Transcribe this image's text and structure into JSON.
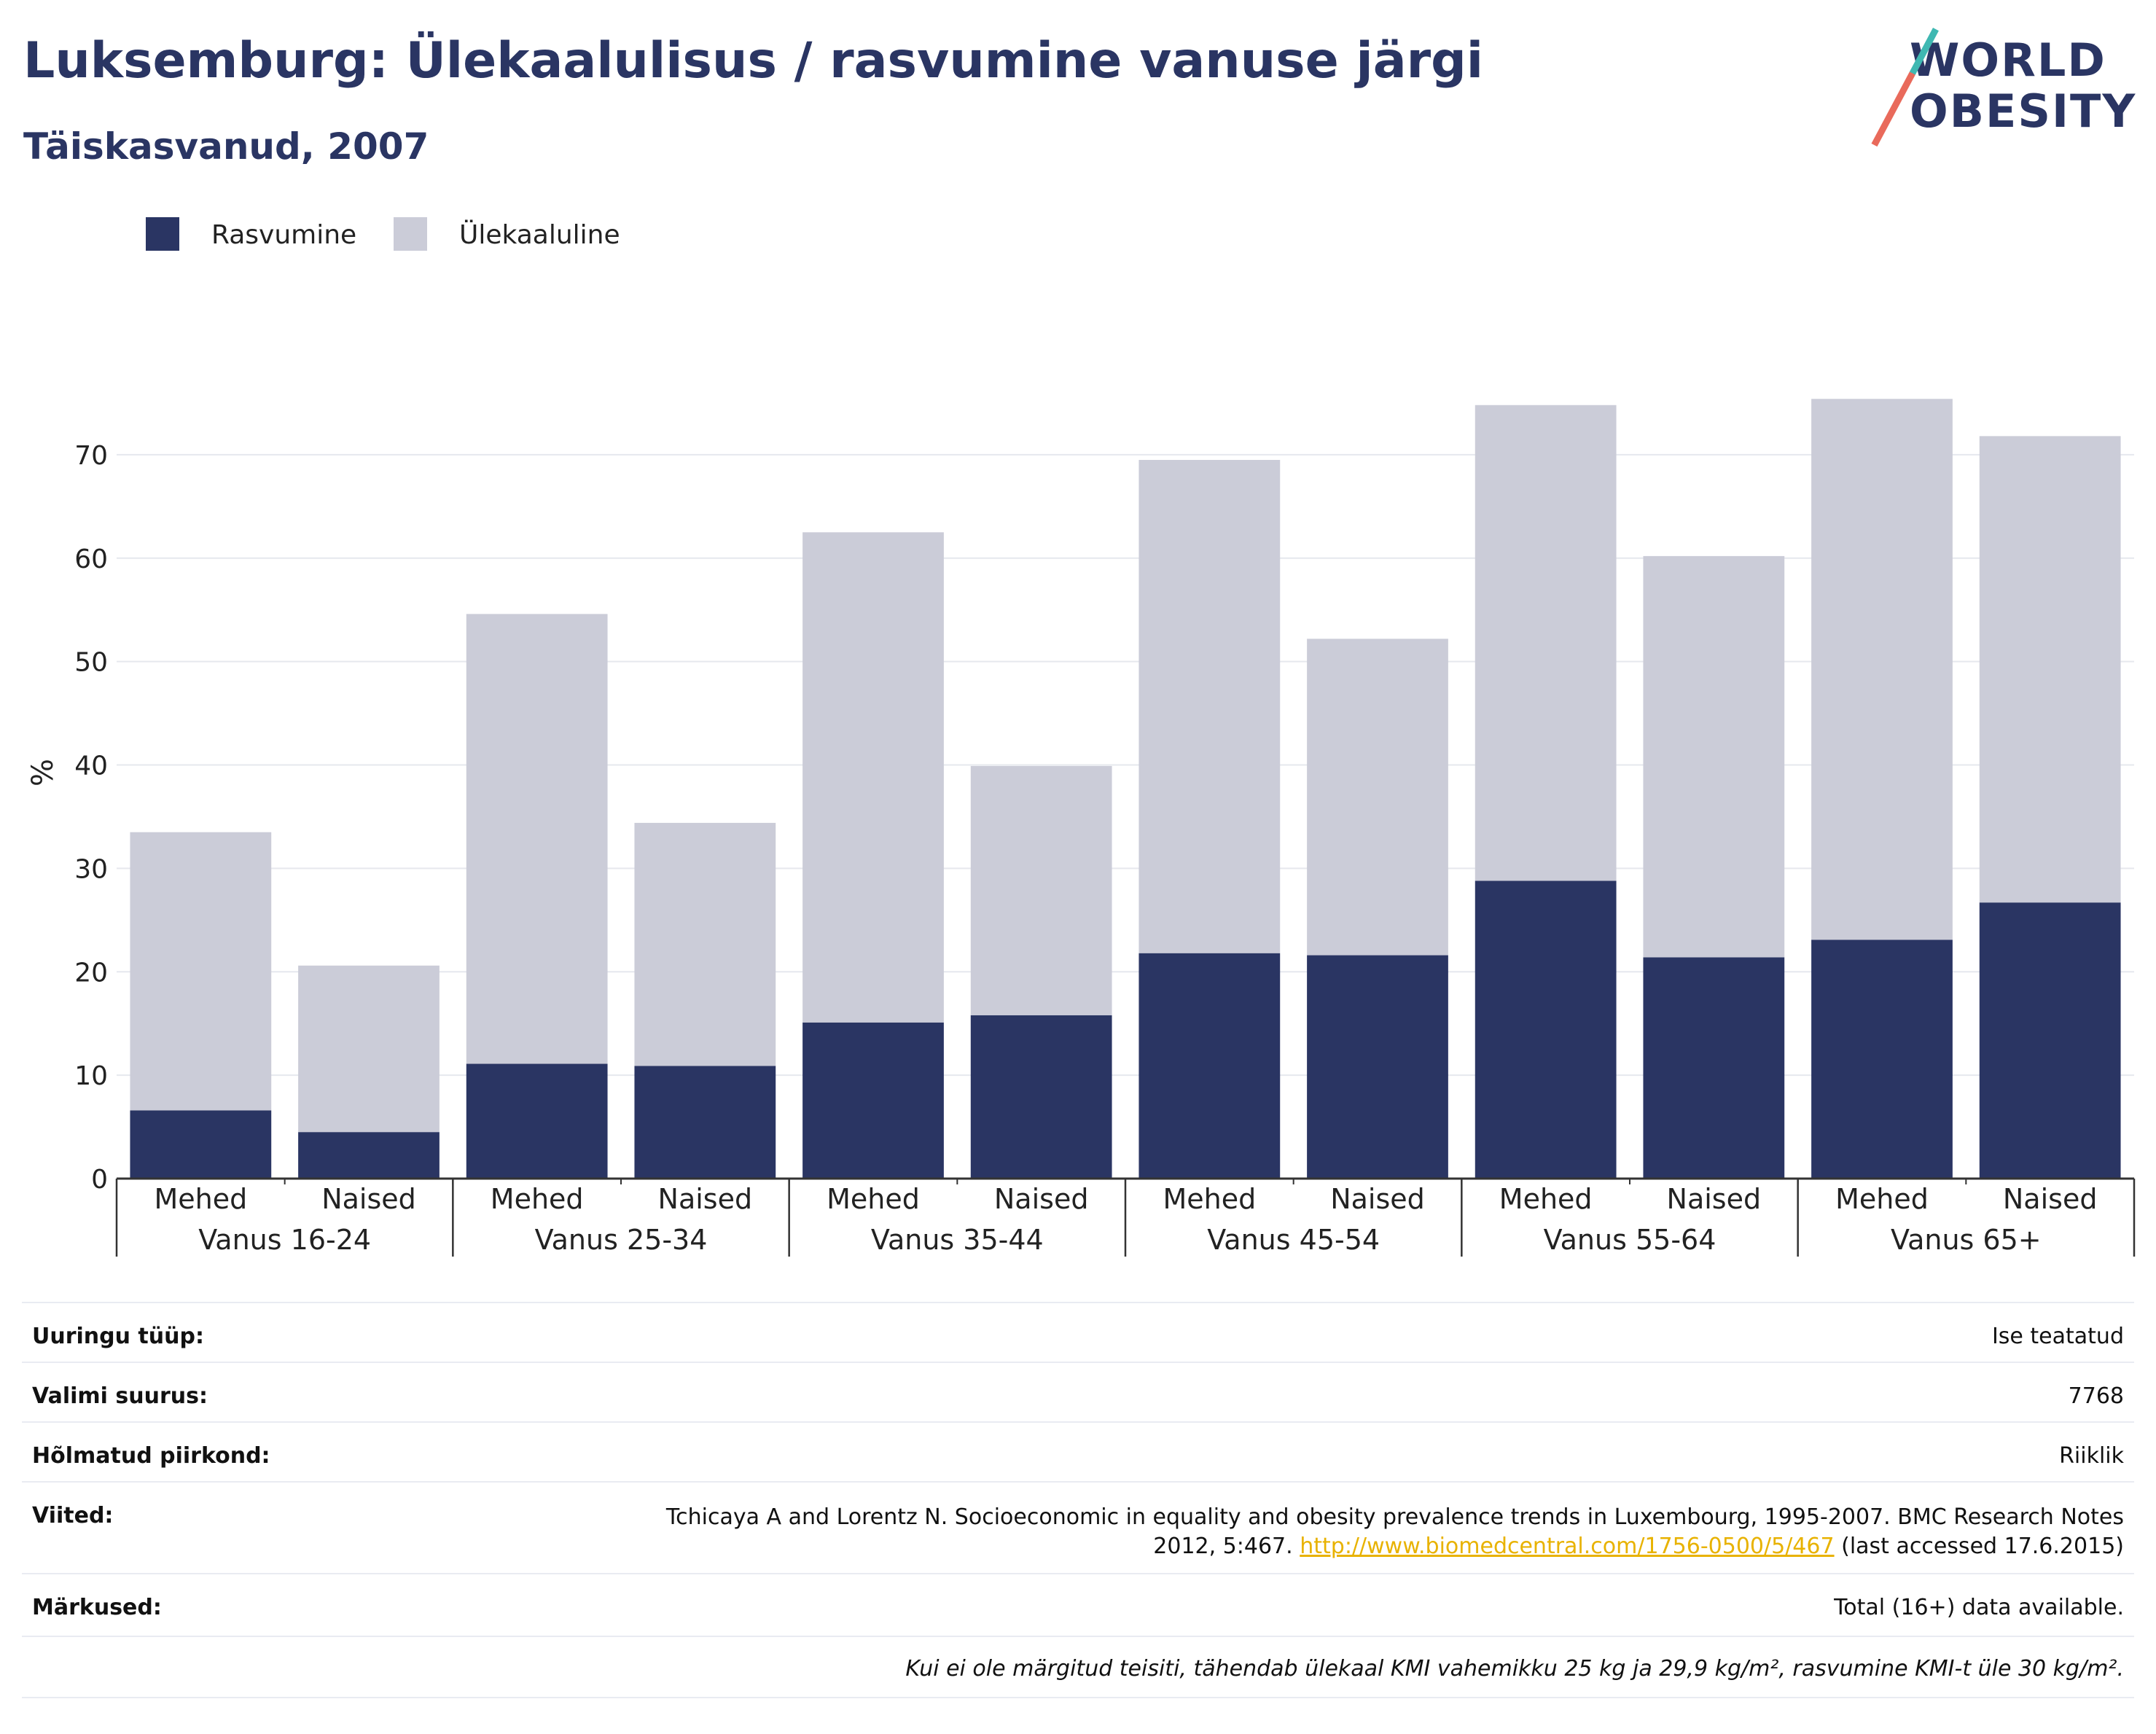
{
  "title": "Luksemburg: Ülekaalulisus / rasvumine vanuse järgi",
  "subtitle": "Täiskasvanud, 2007",
  "logo": {
    "line1": "WORLD",
    "line2": "OBESITY"
  },
  "chart_data": {
    "type": "bar",
    "stacked": true,
    "ylabel": "%",
    "ylim": [
      0,
      80
    ],
    "yticks": [
      0,
      10,
      20,
      30,
      40,
      50,
      60,
      70
    ],
    "grid": true,
    "legend_position": "top-left",
    "groups": [
      "Vanus 16-24",
      "Vanus 25-34",
      "Vanus 35-44",
      "Vanus 45-54",
      "Vanus 55-64",
      "Vanus 65+"
    ],
    "categories": [
      "Mehed",
      "Naised",
      "Mehed",
      "Naised",
      "Mehed",
      "Naised",
      "Mehed",
      "Naised",
      "Mehed",
      "Naised",
      "Mehed",
      "Naised"
    ],
    "series": [
      {
        "name": "Rasvumine",
        "color": "#2a3563",
        "values": [
          6.6,
          4.5,
          11.1,
          10.9,
          15.1,
          15.8,
          21.8,
          21.6,
          28.8,
          21.4,
          23.1,
          26.7
        ]
      },
      {
        "name": "Ülekaaluline",
        "color": "#cbccd8",
        "values": [
          26.9,
          16.1,
          43.5,
          23.5,
          47.4,
          24.1,
          47.7,
          30.6,
          46.0,
          38.8,
          52.3,
          45.1
        ]
      }
    ]
  },
  "info": {
    "rows": [
      {
        "label": "Uuringu tüüp:",
        "value": "Ise teatatud"
      },
      {
        "label": "Valimi suurus:",
        "value": "7768"
      },
      {
        "label": "Hõlmatud piirkond:",
        "value": "Riiklik"
      }
    ],
    "refs_label": "Viited:",
    "refs_line1": "Tchicaya A and Lorentz N. Socioeconomic in equality and obesity prevalence trends in Luxembourg, 1995-2007. BMC Research Notes",
    "refs_line2_pre": "2012, 5:467.",
    "refs_link": "http://www.biomedcentral.com/1756-0500/5/467",
    "refs_line2_post": "(last accessed 17.6.2015)",
    "notes_label": "Märkused:",
    "notes_value": "Total (16+) data available.",
    "footnote": "Kui ei ole märgitud teisiti, tähendab ülekaal KMI vahemikku 25 kg ja 29,9 kg/m², rasvumine KMI-t üle 30 kg/m²."
  }
}
